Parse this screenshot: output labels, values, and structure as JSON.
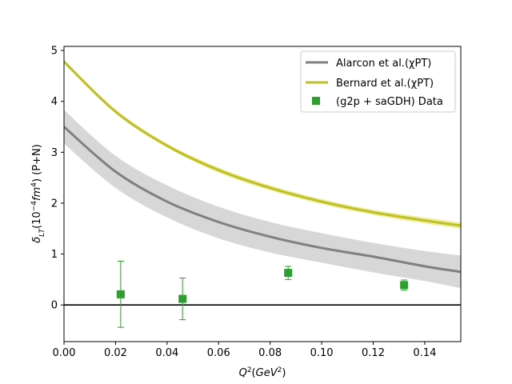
{
  "chart_data": {
    "type": "line",
    "title": "",
    "xlabel_base": "Q",
    "xlabel_sup": "2",
    "xlabel_unit": "GeV",
    "xlabel_unit_sup": "2",
    "ylabel_delta": "δ",
    "ylabel_sub": "LT",
    "ylabel_pre": "(10",
    "ylabel_exp": "−4",
    "ylabel_unit": "fm",
    "ylabel_unit_sup": "4",
    "ylabel_post": ") (P+N)",
    "xlim": [
      0.0,
      0.154
    ],
    "ylim": [
      -0.72,
      5.08
    ],
    "xticks": [
      0.0,
      0.02,
      0.04,
      0.06,
      0.08,
      0.1,
      0.12,
      0.14
    ],
    "xtick_labels": [
      "0.00",
      "0.02",
      "0.04",
      "0.06",
      "0.08",
      "0.10",
      "0.12",
      "0.14"
    ],
    "yticks": [
      0,
      1,
      2,
      3,
      4,
      5
    ],
    "ytick_labels": [
      "0",
      "1",
      "2",
      "3",
      "4",
      "5"
    ],
    "zero_line": true,
    "legend_position": "top-right",
    "series": [
      {
        "name": "Alarcon et al.(χPT)",
        "kind": "band",
        "color": "#808080",
        "band_color": "#d3d3d3",
        "x": [
          0.0,
          0.02,
          0.04,
          0.06,
          0.08,
          0.1,
          0.12,
          0.14,
          0.154
        ],
        "y": [
          3.5,
          2.62,
          2.03,
          1.63,
          1.34,
          1.12,
          0.95,
          0.76,
          0.65
        ],
        "low": [
          3.17,
          2.3,
          1.72,
          1.31,
          1.03,
          0.83,
          0.64,
          0.47,
          0.33
        ],
        "high": [
          3.83,
          2.93,
          2.35,
          1.93,
          1.63,
          1.41,
          1.22,
          1.06,
          0.97
        ]
      },
      {
        "name": "Bernard et al.(χPT)",
        "kind": "band",
        "color": "#bfbf26",
        "band_color": "#eaea8c",
        "x": [
          0.0,
          0.02,
          0.04,
          0.06,
          0.08,
          0.1,
          0.12,
          0.14,
          0.154
        ],
        "y": [
          4.78,
          3.8,
          3.13,
          2.65,
          2.3,
          2.03,
          1.82,
          1.66,
          1.56
        ],
        "low": [
          4.74,
          3.76,
          3.09,
          2.6,
          2.25,
          1.98,
          1.77,
          1.6,
          1.5
        ],
        "high": [
          4.82,
          3.84,
          3.17,
          2.7,
          2.35,
          2.08,
          1.87,
          1.72,
          1.62
        ]
      },
      {
        "name": "(g2p + saGDH) Data",
        "kind": "points",
        "color": "#2ca02c",
        "x": [
          0.022,
          0.046,
          0.087,
          0.132
        ],
        "y": [
          0.21,
          0.12,
          0.63,
          0.39
        ],
        "err": [
          0.65,
          0.41,
          0.13,
          0.1
        ]
      }
    ]
  }
}
